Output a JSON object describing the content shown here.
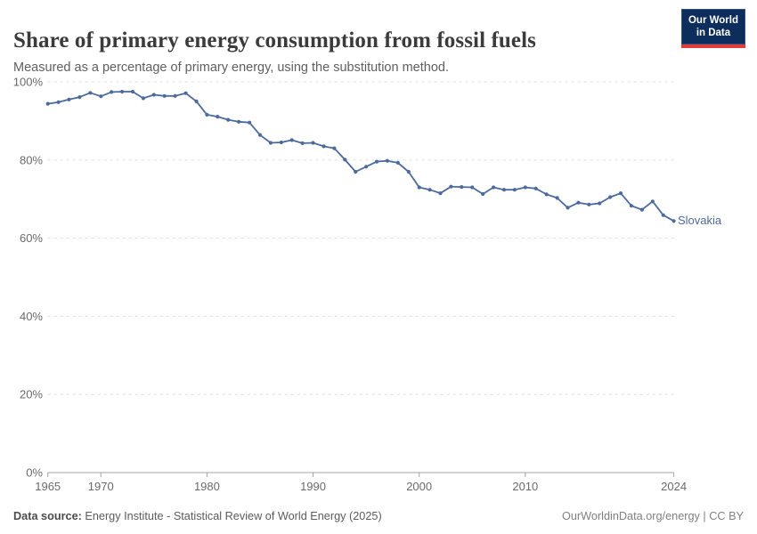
{
  "header": {
    "title": "Share of primary energy consumption from fossil fuels",
    "subtitle": "Measured as a percentage of primary energy, using the substitution method.",
    "logo": {
      "line1": "Our World",
      "line2": "in Data"
    }
  },
  "chart_data": {
    "type": "line",
    "title": "Share of primary energy consumption from fossil fuels",
    "subtitle": "Measured as a percentage of primary energy, using the substitution method.",
    "xlabel": "",
    "ylabel": "",
    "unit": "%",
    "xlim": [
      1965,
      2024
    ],
    "ylim": [
      0,
      100
    ],
    "yticks": [
      0,
      20,
      40,
      60,
      80,
      100
    ],
    "ytick_suffix": "%",
    "xticks": [
      1965,
      1970,
      1980,
      1990,
      2000,
      2010,
      2024
    ],
    "grid": "horizontal-dashed",
    "legend": "entity-label-at-line-end",
    "point_markers": true,
    "x": [
      1965,
      1966,
      1967,
      1968,
      1969,
      1970,
      1971,
      1972,
      1973,
      1974,
      1975,
      1976,
      1977,
      1978,
      1979,
      1980,
      1981,
      1982,
      1983,
      1984,
      1985,
      1986,
      1987,
      1988,
      1989,
      1990,
      1991,
      1992,
      1993,
      1994,
      1995,
      1996,
      1997,
      1998,
      1999,
      2000,
      2001,
      2002,
      2003,
      2004,
      2005,
      2006,
      2007,
      2008,
      2009,
      2010,
      2011,
      2012,
      2013,
      2014,
      2015,
      2016,
      2017,
      2018,
      2019,
      2020,
      2021,
      2022,
      2023,
      2024
    ],
    "series": [
      {
        "name": "Slovakia",
        "color": "#4C6A9C",
        "values": [
          94.4,
          94.8,
          95.5,
          96.1,
          97.2,
          96.3,
          97.4,
          97.5,
          97.5,
          95.8,
          96.7,
          96.4,
          96.4,
          97.1,
          95.0,
          91.6,
          91.1,
          90.3,
          89.8,
          89.6,
          86.4,
          84.4,
          84.5,
          85.1,
          84.3,
          84.4,
          83.5,
          83.0,
          80.1,
          77.0,
          78.3,
          79.6,
          79.8,
          79.3,
          77.0,
          73.0,
          72.4,
          71.5,
          73.2,
          73.1,
          73.0,
          71.3,
          73.0,
          72.4,
          72.4,
          73.0,
          72.7,
          71.2,
          70.3,
          67.8,
          69.1,
          68.6,
          68.9,
          70.5,
          71.5,
          68.3,
          67.3,
          69.4,
          65.9,
          64.4
        ]
      }
    ]
  },
  "footer": {
    "source_label": "Data source:",
    "source_text": " Energy Institute - Statistical Review of World Energy (2025)",
    "rights": "OurWorldinData.org/energy | CC BY"
  },
  "colors": {
    "line": "#4C6A9C",
    "grid": "#dddddd",
    "axis": "#a3a3a3",
    "title": "#3b3b3b",
    "subtitle": "#5f5f5f",
    "tick_label": "#6a6a6a",
    "logo_bg": "#0d2e5c",
    "logo_accent": "#e23a3d"
  }
}
